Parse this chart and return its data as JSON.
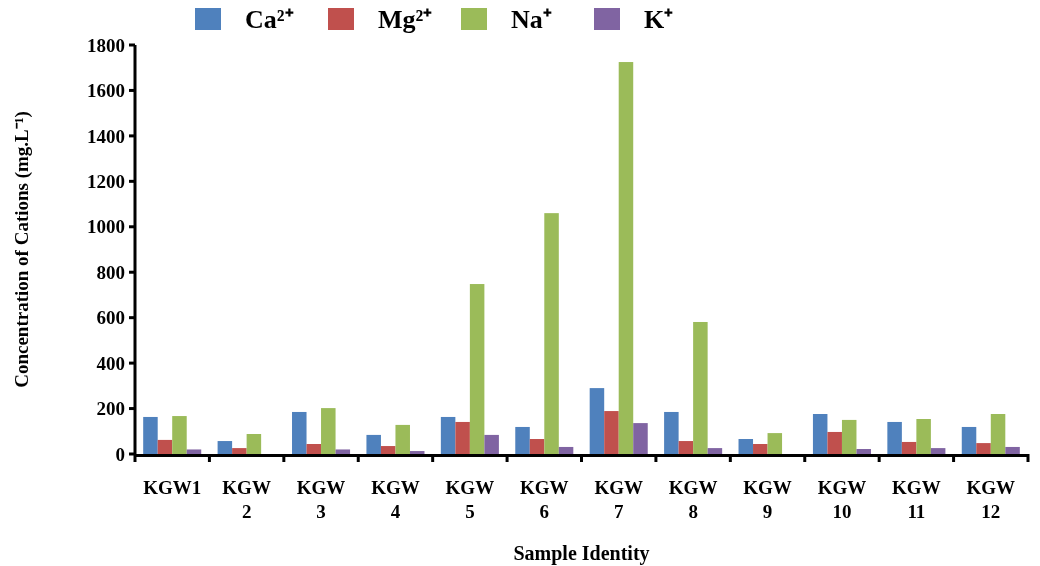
{
  "chart_data": {
    "type": "bar",
    "xlabel": "Sample Identity",
    "ylabel": "Concentration of Cations (mg.L⁻¹)",
    "categories": [
      "KGW1",
      "KGW 2",
      "KGW 3",
      "KGW 4",
      "KGW 5",
      "KGW 6",
      "KGW 7",
      "KGW 8",
      "KGW 9",
      "KGW 10",
      "KGW 11",
      "KGW 12"
    ],
    "series": [
      {
        "name": "Ca²⁺",
        "color": "#4f81bd",
        "values": [
          163,
          57,
          185,
          84,
          163,
          119,
          290,
          185,
          66,
          176,
          141,
          119
        ]
      },
      {
        "name": "Mg²⁺",
        "color": "#c0504d",
        "values": [
          62,
          26,
          44,
          35,
          141,
          66,
          189,
          57,
          44,
          97,
          53,
          48
        ]
      },
      {
        "name": "Na⁺",
        "color": "#9bbb59",
        "values": [
          167,
          88,
          202,
          128,
          748,
          1060,
          1725,
          581,
          92,
          150,
          154,
          176
        ]
      },
      {
        "name": "K⁺",
        "color": "#8064a2",
        "values": [
          20,
          0,
          20,
          13,
          84,
          31,
          136,
          26,
          0,
          22,
          26,
          31
        ]
      }
    ],
    "ylim": [
      0,
      1800
    ],
    "yticks": [
      0,
      200,
      400,
      600,
      800,
      1000,
      1200,
      1400,
      1600,
      1800
    ],
    "grid": false,
    "legend": "top"
  }
}
